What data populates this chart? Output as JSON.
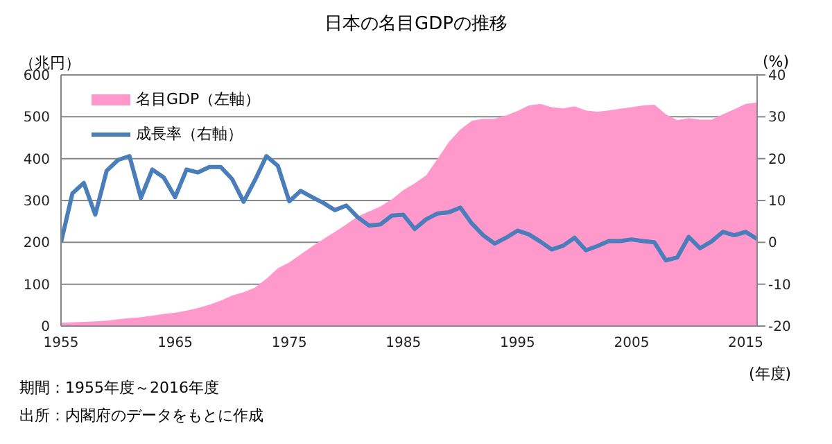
{
  "chart_data": {
    "type": "area",
    "title": "日本の名目GDPの推移",
    "ylabel": "（兆円）",
    "y2label": "(%)",
    "xlabel": "(年度)",
    "annotations": [
      "期間：1955年度～2016年度",
      "出所：内閣府のデータをもとに作成"
    ],
    "x": [
      1955,
      1956,
      1957,
      1958,
      1959,
      1960,
      1961,
      1962,
      1963,
      1964,
      1965,
      1966,
      1967,
      1968,
      1969,
      1970,
      1971,
      1972,
      1973,
      1974,
      1975,
      1976,
      1977,
      1978,
      1979,
      1980,
      1981,
      1982,
      1983,
      1984,
      1985,
      1986,
      1987,
      1988,
      1989,
      1990,
      1991,
      1992,
      1993,
      1994,
      1995,
      1996,
      1997,
      1998,
      1999,
      2000,
      2001,
      2002,
      2003,
      2004,
      2005,
      2006,
      2007,
      2008,
      2009,
      2010,
      2011,
      2012,
      2013,
      2014,
      2015,
      2016
    ],
    "series": [
      {
        "name": "名目GDP（左軸）",
        "color": "#ff99cc",
        "values": [
          8,
          9,
          10,
          11,
          13,
          16,
          19,
          21,
          25,
          29,
          32,
          37,
          43,
          51,
          61,
          73,
          81,
          92,
          113,
          138,
          152,
          171,
          190,
          208,
          225,
          243,
          262,
          274,
          286,
          303,
          325,
          341,
          360,
          400,
          440,
          470,
          490,
          495,
          495,
          503,
          514,
          527,
          531,
          523,
          520,
          525,
          515,
          512,
          515,
          519,
          523,
          527,
          529,
          506,
          492,
          497,
          493,
          493,
          506,
          518,
          531,
          534
        ]
      },
      {
        "name": "成長率（右軸）",
        "type": "line",
        "axis": "y2",
        "color": "#4a7ebb",
        "values": [
          0,
          11.7,
          14.2,
          6.6,
          17.1,
          19.7,
          20.6,
          10.6,
          17.4,
          15.5,
          10.8,
          17.4,
          16.7,
          18,
          18,
          15.1,
          9.7,
          14.9,
          20.6,
          18.3,
          9.8,
          12.3,
          10.8,
          9.4,
          7.7,
          8.8,
          6,
          4,
          4.3,
          6.4,
          6.6,
          3.2,
          5.5,
          6.9,
          7.2,
          8.3,
          4.5,
          1.7,
          -0.3,
          1.1,
          2.8,
          1.9,
          0.2,
          -1.7,
          -0.8,
          1.1,
          -1.9,
          -0.9,
          0.3,
          0.3,
          0.7,
          0.3,
          0,
          -4.3,
          -3.6,
          1.3,
          -1.4,
          0.2,
          2.5,
          1.7,
          2.5,
          0.8
        ]
      }
    ],
    "xlim": [
      1955,
      2016
    ],
    "xticks": [
      1955,
      1965,
      1975,
      1985,
      1995,
      2005,
      2015
    ],
    "ylim": [
      0,
      600
    ],
    "yticks": [
      0,
      100,
      200,
      300,
      400,
      500,
      600
    ],
    "y2lim": [
      -20,
      40
    ],
    "y2ticks": [
      -20,
      -10,
      0,
      10,
      20,
      30,
      40
    ],
    "grid": "y",
    "legend": "top left"
  }
}
